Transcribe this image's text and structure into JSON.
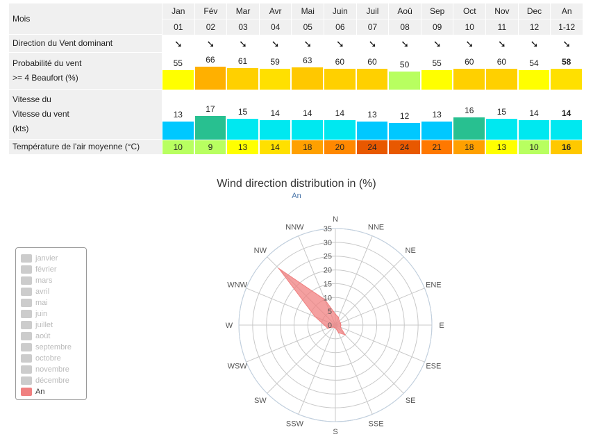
{
  "table": {
    "month_label": "Mois",
    "months": [
      {
        "name": "Jan",
        "num": "01"
      },
      {
        "name": "Fév",
        "num": "02"
      },
      {
        "name": "Mar",
        "num": "03"
      },
      {
        "name": "Avr",
        "num": "04"
      },
      {
        "name": "Mai",
        "num": "05"
      },
      {
        "name": "Juin",
        "num": "06"
      },
      {
        "name": "Juil",
        "num": "07"
      },
      {
        "name": "Aoû",
        "num": "08"
      },
      {
        "name": "Sep",
        "num": "09"
      },
      {
        "name": "Oct",
        "num": "10"
      },
      {
        "name": "Nov",
        "num": "11"
      },
      {
        "name": "Dec",
        "num": "12"
      },
      {
        "name": "An",
        "num": "1-12"
      }
    ],
    "direction_label": "Direction du Vent dominant",
    "direction_glyph": "➘",
    "prob_label_1": "Probabilité du vent",
    "prob_label_2": ">= 4 Beaufort (%)",
    "prob_values": [
      "55",
      "66",
      "61",
      "59",
      "63",
      "60",
      "60",
      "50",
      "55",
      "60",
      "60",
      "54",
      "58"
    ],
    "prob_colors": [
      "#ffff00",
      "#ffb000",
      "#ffd000",
      "#ffe000",
      "#ffc800",
      "#ffd000",
      "#ffd000",
      "#b8ff60",
      "#ffff00",
      "#ffd000",
      "#ffd000",
      "#ffff00",
      "#ffe000"
    ],
    "speed_label_1": "Vitesse du",
    "speed_label_2": "Vitesse du vent",
    "speed_label_3": "(kts)",
    "speed_values": [
      "13",
      "17",
      "15",
      "14",
      "14",
      "14",
      "13",
      "12",
      "13",
      "16",
      "15",
      "14",
      "14"
    ],
    "speed_colors": [
      "#00c8ff",
      "#28c090",
      "#00e8f0",
      "#00e8f0",
      "#00e8f0",
      "#00e8f0",
      "#00c8ff",
      "#00c8ff",
      "#00c8ff",
      "#28c090",
      "#00e8f0",
      "#00e8f0",
      "#00e8f0"
    ],
    "temp_label": "Température de l'air moyenne (°C)",
    "temp_values": [
      "10",
      "9",
      "13",
      "14",
      "18",
      "20",
      "24",
      "24",
      "21",
      "18",
      "13",
      "10",
      "16"
    ],
    "temp_colors": [
      "#b8ff60",
      "#b8ff60",
      "#ffff00",
      "#ffe000",
      "#ffa000",
      "#ff8800",
      "#e85800",
      "#e85800",
      "#ff7800",
      "#ffa000",
      "#ffff00",
      "#b8ff60",
      "#ffc800"
    ]
  },
  "chart": {
    "title": "Wind direction distribution in (%)",
    "subtitle": "An"
  },
  "legend": {
    "items": [
      "janvier",
      "février",
      "mars",
      "avril",
      "mai",
      "juin",
      "juillet",
      "août",
      "septembre",
      "octobre",
      "novembre",
      "décembre",
      "An"
    ],
    "active": "An",
    "active_color": "#f08080"
  },
  "chart_data": {
    "type": "polar-area",
    "directions": [
      "N",
      "NNE",
      "NE",
      "ENE",
      "E",
      "ESE",
      "SE",
      "SSE",
      "S",
      "SSW",
      "SW",
      "WSW",
      "W",
      "WNW",
      "NW",
      "NNW"
    ],
    "radial_ticks": [
      "0",
      "5",
      "10",
      "15",
      "20",
      "25",
      "30",
      "35"
    ],
    "rmax": 35,
    "series": [
      {
        "name": "An",
        "values": [
          4,
          3,
          2,
          2,
          2,
          2,
          5,
          3,
          1,
          1,
          1,
          3,
          4,
          8,
          29,
          10
        ]
      }
    ]
  }
}
